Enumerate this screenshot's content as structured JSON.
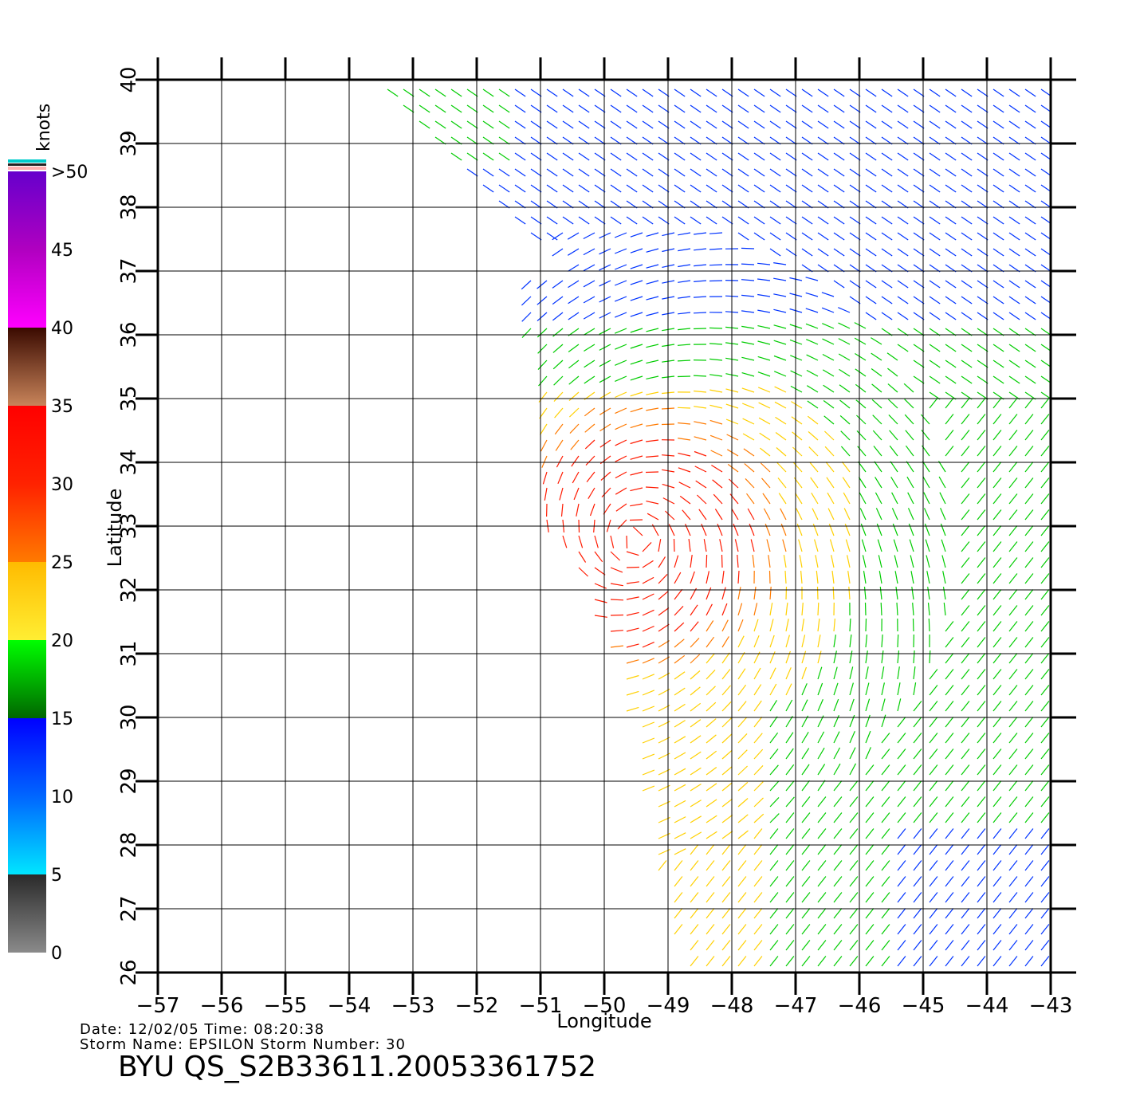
{
  "map": {
    "x_axis_label": "Longitude",
    "y_axis_label": "Latitude",
    "lon_ticks": [
      "-57",
      "-56",
      "-55",
      "-54",
      "-53",
      "-52",
      "-51",
      "-50",
      "-49",
      "-48",
      "-47",
      "-46",
      "-45",
      "-44",
      "-43"
    ],
    "lat_ticks": [
      "26",
      "27",
      "28",
      "29",
      "30",
      "31",
      "32",
      "33",
      "34",
      "35",
      "36",
      "37",
      "38",
      "39",
      "40"
    ],
    "lon_range": [
      -57,
      -43
    ],
    "lat_range": [
      26,
      40
    ],
    "grid": true,
    "storm_center_lon_lat": [
      -49.5,
      32.8
    ]
  },
  "colorbar": {
    "unit": "knots",
    "labels": [
      "0",
      "5",
      "10",
      "15",
      "20",
      "25",
      "30",
      "35",
      "40",
      "45",
      ">50"
    ],
    "colors": {
      "0-5": "#5a5a5a",
      "5-10": "#00b4ff",
      "10-15": "#0033ff",
      "15-20": "#00cc00",
      "20-25": "#ffd000",
      "25-30": "#ff7a00",
      "30-35": "#ff1a00",
      "35-40": "#6b2a10",
      "40-45": "#e000e0",
      "45-50": "#7a00cc"
    }
  },
  "meta": {
    "date_line": "Date: 12/02/05   Time: 08:20:38",
    "storm_line": "Storm  Name:  EPSILON    Storm  Number:  30",
    "title": "BYU  QS_S2B33611.20053361752"
  }
}
